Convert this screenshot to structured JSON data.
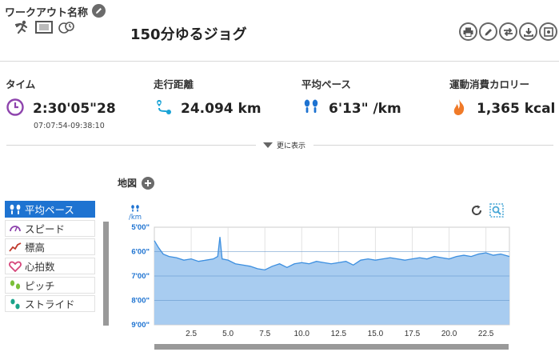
{
  "header": {
    "workout_name_label": "ワークアウト名称",
    "title": "150分ゆるジョグ"
  },
  "stats": {
    "time": {
      "label": "タイム",
      "value": "2:30'05\"28",
      "sub": "07:07:54-09:38:10"
    },
    "distance": {
      "label": "走行距離",
      "value": "24.094 km"
    },
    "pace": {
      "label": "平均ペース",
      "value": "6'13\" /km"
    },
    "calories": {
      "label": "運動消費カロリー",
      "value": "1,365 kcal"
    }
  },
  "more_label": "更に表示",
  "map_label": "地図",
  "metrics": [
    {
      "label": "平均ペース",
      "icon": "pace-icon",
      "active": true
    },
    {
      "label": "スピード",
      "icon": "speed-icon",
      "active": false
    },
    {
      "label": "標高",
      "icon": "elevation-icon",
      "active": false
    },
    {
      "label": "心拍数",
      "icon": "heart-icon",
      "active": false
    },
    {
      "label": "ピッチ",
      "icon": "pitch-icon",
      "active": false
    },
    {
      "label": "ストライド",
      "icon": "stride-icon",
      "active": false
    }
  ],
  "colors": {
    "accent": "#1e73d1",
    "chart_fill": "#a8ccf0",
    "chart_line": "#3c8fe0",
    "time_icon": "#8e44ad",
    "distance_icon": "#1aa3d6",
    "calorie_icon": "#f07a28"
  },
  "chart_data": {
    "type": "area",
    "ylabel_unit": "/km",
    "y_ticks": [
      "5'00\"",
      "6'00\"",
      "7'00\"",
      "8'00\"",
      "9'00\""
    ],
    "y_tick_values": [
      5,
      6,
      7,
      8,
      9
    ],
    "ylim": [
      5,
      9
    ],
    "y_inverted": true,
    "x_ticks": [
      "2.5",
      "5.0",
      "7.5",
      "10.0",
      "12.5",
      "15.0",
      "17.5",
      "20.0",
      "22.5"
    ],
    "x_tick_values": [
      2.5,
      5.0,
      7.5,
      10.0,
      12.5,
      15.0,
      17.5,
      20.0,
      22.5
    ],
    "xlim": [
      0,
      24.094
    ],
    "grid": true,
    "series": [
      {
        "x": [
          0,
          0.3,
          0.6,
          1.0,
          1.5,
          2.0,
          2.5,
          3.0,
          3.5,
          4.0,
          4.3,
          4.45,
          4.6,
          5.0,
          5.5,
          6.0,
          6.5,
          7.0,
          7.5,
          8.0,
          8.5,
          9.0,
          9.5,
          10.0,
          10.5,
          11.0,
          11.5,
          12.0,
          12.5,
          13.0,
          13.5,
          14.0,
          14.5,
          15.0,
          15.5,
          16.0,
          16.5,
          17.0,
          17.5,
          18.0,
          18.5,
          19.0,
          19.5,
          20.0,
          20.5,
          21.0,
          21.5,
          22.0,
          22.5,
          23.0,
          23.5,
          24.09
        ],
        "values": [
          5.55,
          5.85,
          6.1,
          6.2,
          6.25,
          6.35,
          6.3,
          6.4,
          6.35,
          6.3,
          6.2,
          5.4,
          6.3,
          6.35,
          6.5,
          6.55,
          6.6,
          6.7,
          6.75,
          6.6,
          6.5,
          6.65,
          6.5,
          6.45,
          6.5,
          6.4,
          6.45,
          6.5,
          6.45,
          6.4,
          6.55,
          6.35,
          6.3,
          6.35,
          6.3,
          6.25,
          6.3,
          6.35,
          6.3,
          6.25,
          6.3,
          6.2,
          6.25,
          6.3,
          6.2,
          6.15,
          6.2,
          6.1,
          6.05,
          6.15,
          6.1,
          6.2
        ]
      }
    ]
  }
}
